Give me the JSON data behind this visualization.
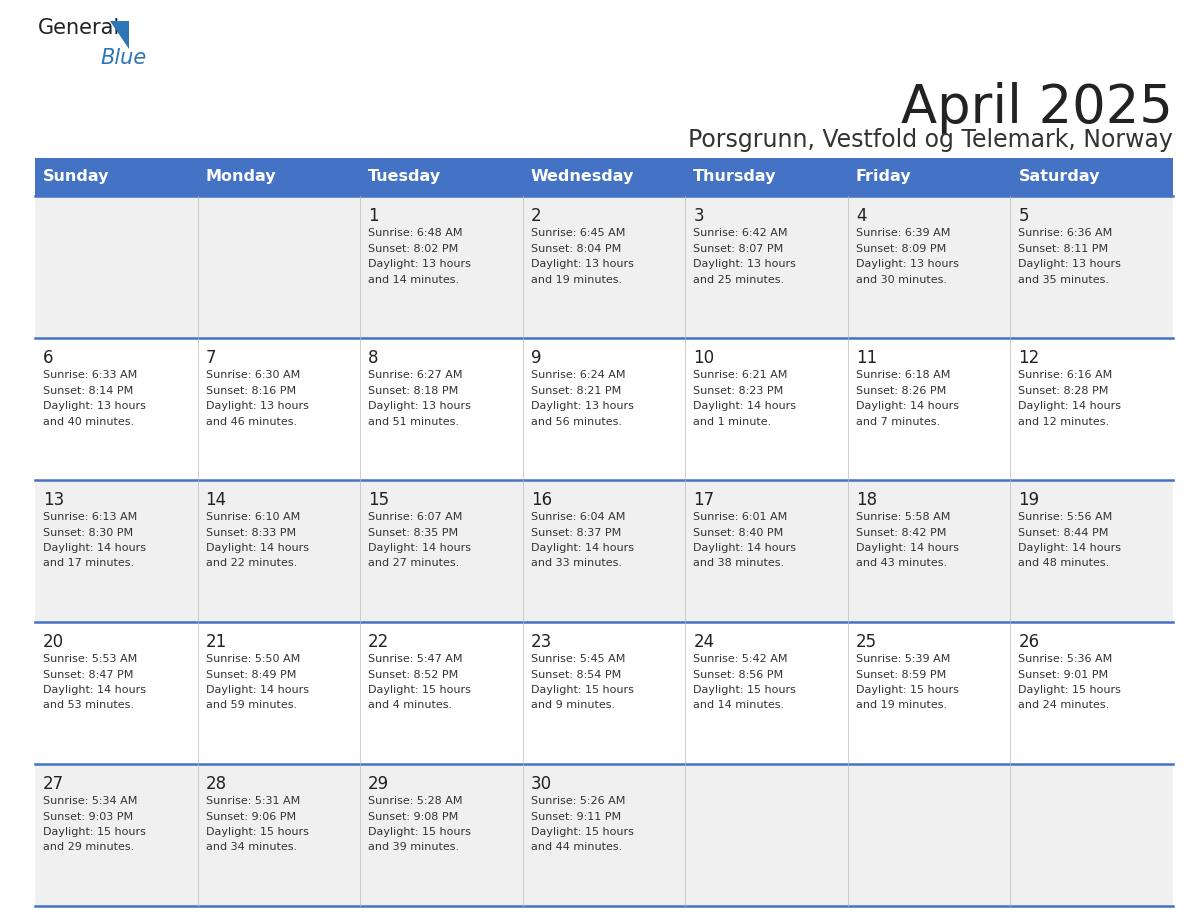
{
  "title": "April 2025",
  "subtitle": "Porsgrunn, Vestfold og Telemark, Norway",
  "days_of_week": [
    "Sunday",
    "Monday",
    "Tuesday",
    "Wednesday",
    "Thursday",
    "Friday",
    "Saturday"
  ],
  "header_bg": "#4472C4",
  "header_text": "#FFFFFF",
  "row_bg_odd": "#F0F0F0",
  "row_bg_even": "#FFFFFF",
  "row_border": "#4472C4",
  "day_number_color": "#222222",
  "cell_text_color": "#333333",
  "title_color": "#222222",
  "subtitle_color": "#333333",
  "logo_general_color": "#222222",
  "logo_blue_color": "#2E75B6",
  "weeks": [
    [
      {
        "day": "",
        "sunrise": "",
        "sunset": "",
        "daylight": ""
      },
      {
        "day": "",
        "sunrise": "",
        "sunset": "",
        "daylight": ""
      },
      {
        "day": "1",
        "sunrise": "6:48 AM",
        "sunset": "8:02 PM",
        "daylight": "13 hours and 14 minutes."
      },
      {
        "day": "2",
        "sunrise": "6:45 AM",
        "sunset": "8:04 PM",
        "daylight": "13 hours and 19 minutes."
      },
      {
        "day": "3",
        "sunrise": "6:42 AM",
        "sunset": "8:07 PM",
        "daylight": "13 hours and 25 minutes."
      },
      {
        "day": "4",
        "sunrise": "6:39 AM",
        "sunset": "8:09 PM",
        "daylight": "13 hours and 30 minutes."
      },
      {
        "day": "5",
        "sunrise": "6:36 AM",
        "sunset": "8:11 PM",
        "daylight": "13 hours and 35 minutes."
      }
    ],
    [
      {
        "day": "6",
        "sunrise": "6:33 AM",
        "sunset": "8:14 PM",
        "daylight": "13 hours and 40 minutes."
      },
      {
        "day": "7",
        "sunrise": "6:30 AM",
        "sunset": "8:16 PM",
        "daylight": "13 hours and 46 minutes."
      },
      {
        "day": "8",
        "sunrise": "6:27 AM",
        "sunset": "8:18 PM",
        "daylight": "13 hours and 51 minutes."
      },
      {
        "day": "9",
        "sunrise": "6:24 AM",
        "sunset": "8:21 PM",
        "daylight": "13 hours and 56 minutes."
      },
      {
        "day": "10",
        "sunrise": "6:21 AM",
        "sunset": "8:23 PM",
        "daylight": "14 hours and 1 minute."
      },
      {
        "day": "11",
        "sunrise": "6:18 AM",
        "sunset": "8:26 PM",
        "daylight": "14 hours and 7 minutes."
      },
      {
        "day": "12",
        "sunrise": "6:16 AM",
        "sunset": "8:28 PM",
        "daylight": "14 hours and 12 minutes."
      }
    ],
    [
      {
        "day": "13",
        "sunrise": "6:13 AM",
        "sunset": "8:30 PM",
        "daylight": "14 hours and 17 minutes."
      },
      {
        "day": "14",
        "sunrise": "6:10 AM",
        "sunset": "8:33 PM",
        "daylight": "14 hours and 22 minutes."
      },
      {
        "day": "15",
        "sunrise": "6:07 AM",
        "sunset": "8:35 PM",
        "daylight": "14 hours and 27 minutes."
      },
      {
        "day": "16",
        "sunrise": "6:04 AM",
        "sunset": "8:37 PM",
        "daylight": "14 hours and 33 minutes."
      },
      {
        "day": "17",
        "sunrise": "6:01 AM",
        "sunset": "8:40 PM",
        "daylight": "14 hours and 38 minutes."
      },
      {
        "day": "18",
        "sunrise": "5:58 AM",
        "sunset": "8:42 PM",
        "daylight": "14 hours and 43 minutes."
      },
      {
        "day": "19",
        "sunrise": "5:56 AM",
        "sunset": "8:44 PM",
        "daylight": "14 hours and 48 minutes."
      }
    ],
    [
      {
        "day": "20",
        "sunrise": "5:53 AM",
        "sunset": "8:47 PM",
        "daylight": "14 hours and 53 minutes."
      },
      {
        "day": "21",
        "sunrise": "5:50 AM",
        "sunset": "8:49 PM",
        "daylight": "14 hours and 59 minutes."
      },
      {
        "day": "22",
        "sunrise": "5:47 AM",
        "sunset": "8:52 PM",
        "daylight": "15 hours and 4 minutes."
      },
      {
        "day": "23",
        "sunrise": "5:45 AM",
        "sunset": "8:54 PM",
        "daylight": "15 hours and 9 minutes."
      },
      {
        "day": "24",
        "sunrise": "5:42 AM",
        "sunset": "8:56 PM",
        "daylight": "15 hours and 14 minutes."
      },
      {
        "day": "25",
        "sunrise": "5:39 AM",
        "sunset": "8:59 PM",
        "daylight": "15 hours and 19 minutes."
      },
      {
        "day": "26",
        "sunrise": "5:36 AM",
        "sunset": "9:01 PM",
        "daylight": "15 hours and 24 minutes."
      }
    ],
    [
      {
        "day": "27",
        "sunrise": "5:34 AM",
        "sunset": "9:03 PM",
        "daylight": "15 hours and 29 minutes."
      },
      {
        "day": "28",
        "sunrise": "5:31 AM",
        "sunset": "9:06 PM",
        "daylight": "15 hours and 34 minutes."
      },
      {
        "day": "29",
        "sunrise": "5:28 AM",
        "sunset": "9:08 PM",
        "daylight": "15 hours and 39 minutes."
      },
      {
        "day": "30",
        "sunrise": "5:26 AM",
        "sunset": "9:11 PM",
        "daylight": "15 hours and 44 minutes."
      },
      {
        "day": "",
        "sunrise": "",
        "sunset": "",
        "daylight": ""
      },
      {
        "day": "",
        "sunrise": "",
        "sunset": "",
        "daylight": ""
      },
      {
        "day": "",
        "sunrise": "",
        "sunset": "",
        "daylight": ""
      }
    ]
  ],
  "fig_width": 11.88,
  "fig_height": 9.18,
  "dpi": 100
}
